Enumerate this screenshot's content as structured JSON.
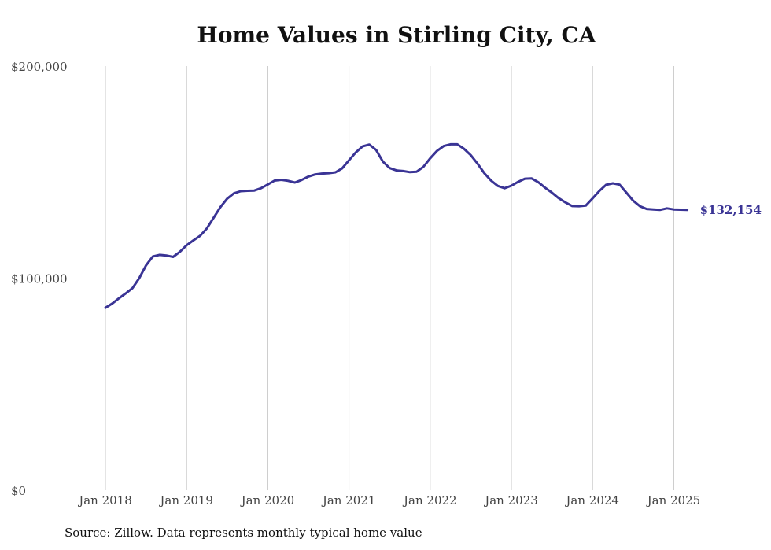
{
  "chart_data": {
    "type": "line",
    "title": "Home Values in Stirling City, CA",
    "source": "Source: Zillow. Data represents monthly typical home value",
    "xlabel": "",
    "ylabel": "",
    "ylim": [
      0,
      200000
    ],
    "yticks": [
      {
        "value": 0,
        "label": "$0"
      },
      {
        "value": 100000,
        "label": "$100,000"
      },
      {
        "value": 200000,
        "label": "$200,000"
      }
    ],
    "xticks": [
      {
        "date": "2018-01",
        "label": "Jan 2018"
      },
      {
        "date": "2019-01",
        "label": "Jan 2019"
      },
      {
        "date": "2020-01",
        "label": "Jan 2020"
      },
      {
        "date": "2021-01",
        "label": "Jan 2021"
      },
      {
        "date": "2022-01",
        "label": "Jan 2022"
      },
      {
        "date": "2023-01",
        "label": "Jan 2023"
      },
      {
        "date": "2024-01",
        "label": "Jan 2024"
      },
      {
        "date": "2025-01",
        "label": "Jan 2025"
      }
    ],
    "grid": {
      "vertical": true,
      "horizontal": false
    },
    "line_color": "#3a3495",
    "end_label": "$132,154",
    "series": [
      {
        "name": "",
        "x": [
          "2018-01",
          "2018-02",
          "2018-03",
          "2018-04",
          "2018-05",
          "2018-06",
          "2018-07",
          "2018-08",
          "2018-09",
          "2018-10",
          "2018-11",
          "2018-12",
          "2019-01",
          "2019-02",
          "2019-03",
          "2019-04",
          "2019-05",
          "2019-06",
          "2019-07",
          "2019-08",
          "2019-09",
          "2019-10",
          "2019-11",
          "2019-12",
          "2020-01",
          "2020-02",
          "2020-03",
          "2020-04",
          "2020-05",
          "2020-06",
          "2020-07",
          "2020-08",
          "2020-09",
          "2020-10",
          "2020-11",
          "2020-12",
          "2021-01",
          "2021-02",
          "2021-03",
          "2021-04",
          "2021-05",
          "2021-06",
          "2021-07",
          "2021-08",
          "2021-09",
          "2021-10",
          "2021-11",
          "2021-12",
          "2022-01",
          "2022-02",
          "2022-03",
          "2022-04",
          "2022-05",
          "2022-06",
          "2022-07",
          "2022-08",
          "2022-09",
          "2022-10",
          "2022-11",
          "2022-12",
          "2023-01",
          "2023-02",
          "2023-03",
          "2023-04",
          "2023-05",
          "2023-06",
          "2023-07",
          "2023-08",
          "2023-09",
          "2023-10",
          "2023-11",
          "2023-12",
          "2024-01",
          "2024-02",
          "2024-03",
          "2024-04",
          "2024-05",
          "2024-06",
          "2024-07",
          "2024-08",
          "2024-09",
          "2024-10",
          "2024-11",
          "2024-12",
          "2025-01",
          "2025-02",
          "2025-03"
        ],
        "values": [
          86000,
          88000,
          90500,
          92800,
          95300,
          100000,
          106000,
          110200,
          111000,
          110700,
          110000,
          112400,
          115500,
          117800,
          120000,
          123500,
          128500,
          133500,
          137500,
          140000,
          141000,
          141200,
          141300,
          142400,
          144200,
          146000,
          146400,
          145900,
          145100,
          146300,
          147900,
          148900,
          149300,
          149500,
          149900,
          151800,
          155600,
          159300,
          162100,
          163000,
          160500,
          155000,
          151900,
          150800,
          150500,
          150000,
          150200,
          152500,
          156500,
          160000,
          162300,
          163100,
          163100,
          161000,
          158000,
          154000,
          149500,
          146000,
          143500,
          142400,
          143600,
          145400,
          146900,
          147000,
          145200,
          142600,
          140300,
          137700,
          135700,
          134000,
          133900,
          134200,
          137600,
          141100,
          144000,
          144700,
          144100,
          140300,
          136500,
          133900,
          132600,
          132400,
          132200,
          132900,
          132400,
          132300,
          132154
        ]
      }
    ]
  }
}
